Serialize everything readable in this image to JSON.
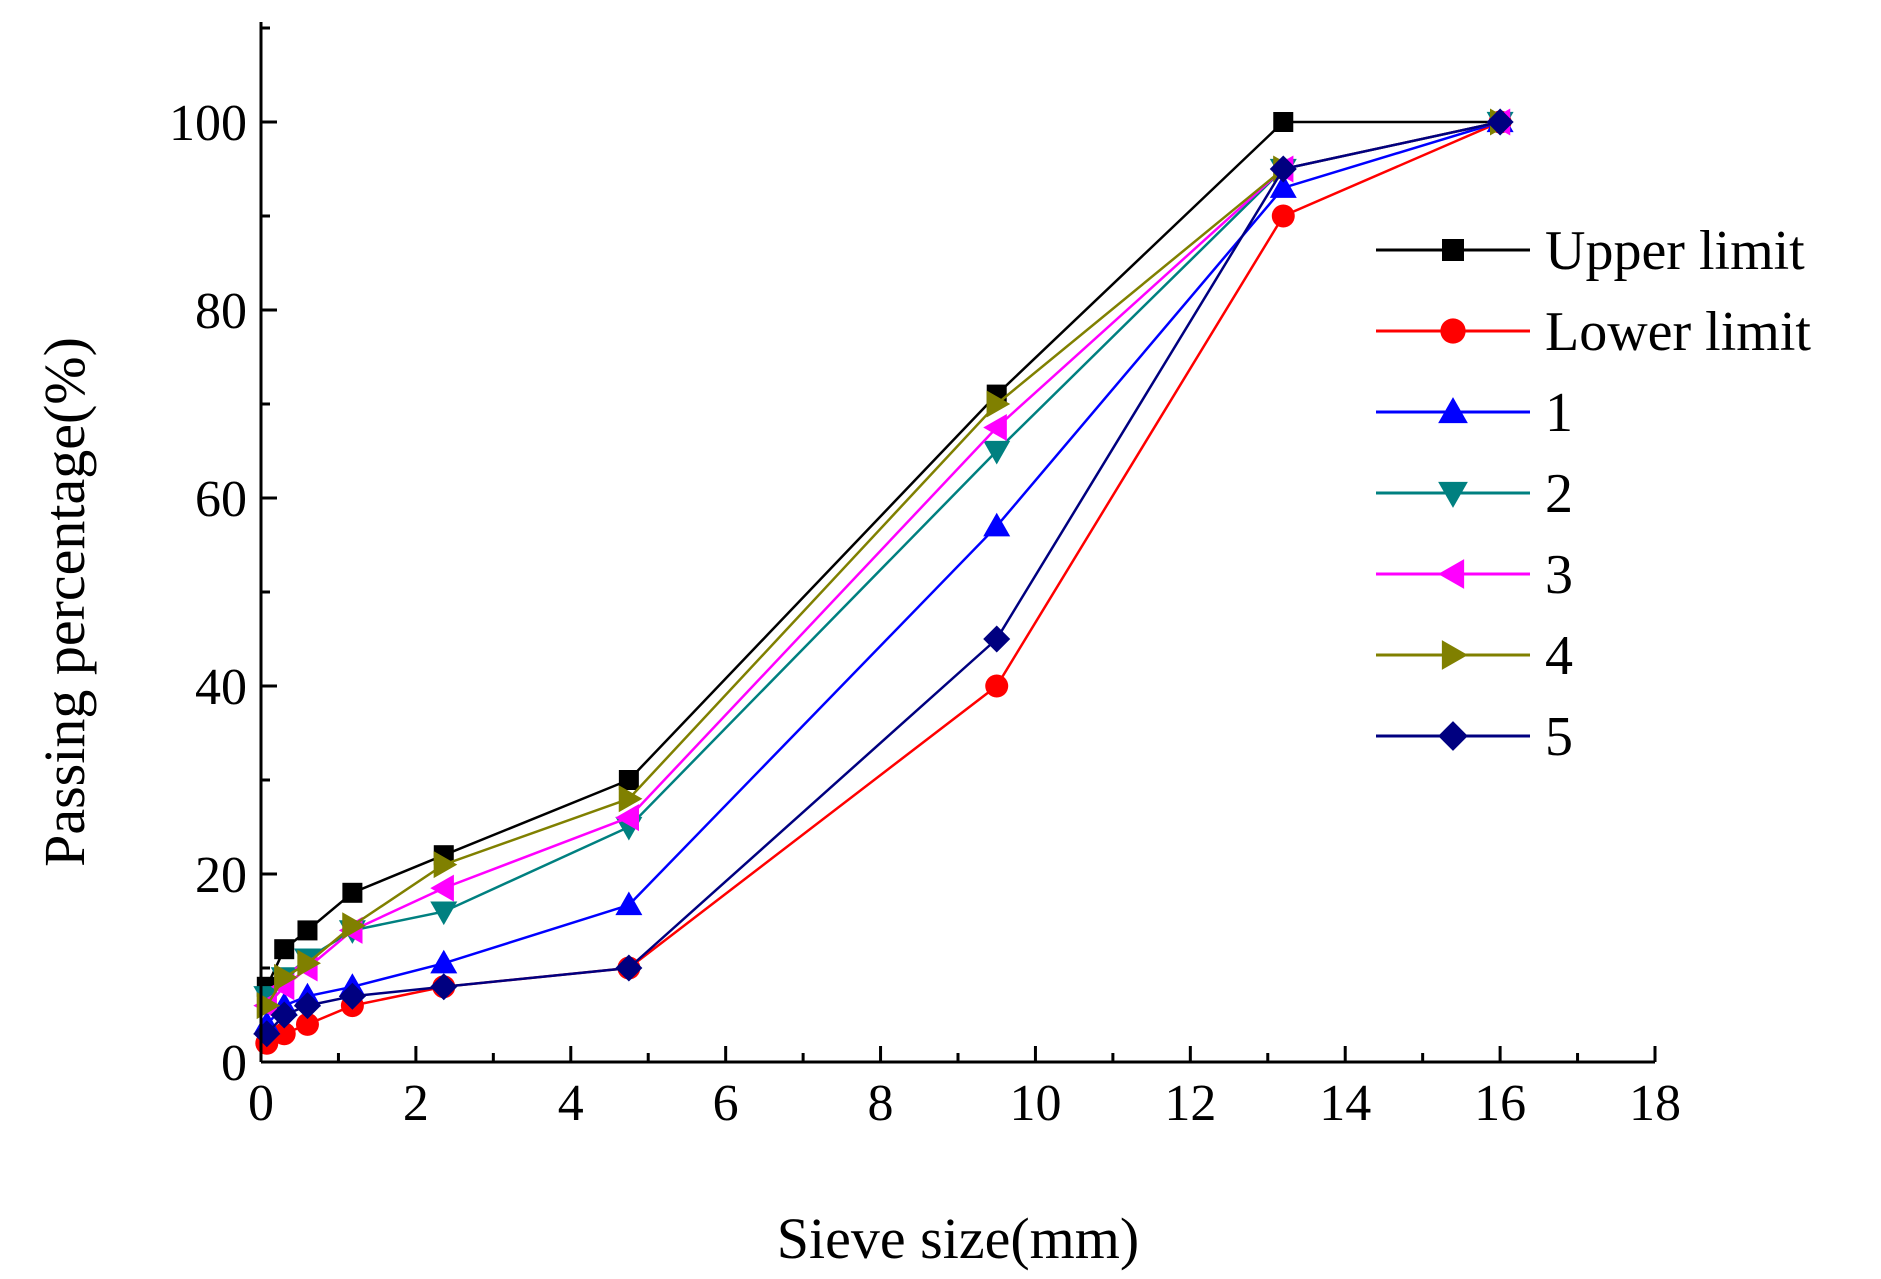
{
  "chart_data": {
    "type": "line",
    "title": "",
    "xlabel": "Sieve size(mm)",
    "ylabel": "Passing percentage(%)",
    "xlim": [
      0,
      18
    ],
    "ylim": [
      0,
      110
    ],
    "x_ticks": [
      "0",
      "2",
      "4",
      "6",
      "8",
      "10",
      "12",
      "14",
      "16",
      "18"
    ],
    "y_ticks": [
      "0",
      "20",
      "40",
      "60",
      "80",
      "100"
    ],
    "grid": false,
    "legend_position": "right",
    "x": [
      0.075,
      0.3,
      0.6,
      1.18,
      2.36,
      4.75,
      9.5,
      13.2,
      16
    ],
    "series": [
      {
        "name": "Upper limit",
        "color": "#000000",
        "marker": "square",
        "values": [
          8,
          12,
          14,
          18,
          22,
          30,
          71,
          100,
          100
        ]
      },
      {
        "name": "Lower limit",
        "color": "#ff0000",
        "marker": "circle",
        "values": [
          2,
          3,
          4,
          6,
          8,
          10,
          40,
          90,
          100
        ]
      },
      {
        "name": "1",
        "color": "#0000ff",
        "marker": "triangle-up",
        "values": [
          4,
          6,
          7,
          8,
          10.5,
          16.7,
          57,
          93,
          100
        ]
      },
      {
        "name": "2",
        "color": "#008080",
        "marker": "triangle-down",
        "values": [
          7,
          9,
          11,
          14,
          16,
          25,
          65,
          95,
          100
        ]
      },
      {
        "name": "3",
        "color": "#ff00ff",
        "marker": "triangle-left",
        "values": [
          6,
          8,
          10,
          14,
          18.5,
          26,
          67.5,
          95,
          100
        ]
      },
      {
        "name": "4",
        "color": "#808000",
        "marker": "triangle-right",
        "values": [
          6,
          9,
          10.5,
          14.5,
          21,
          28,
          70,
          95,
          100
        ]
      },
      {
        "name": "5",
        "color": "#000080",
        "marker": "diamond",
        "values": [
          3,
          5,
          6,
          7,
          8,
          10,
          45,
          95,
          100
        ]
      }
    ]
  }
}
